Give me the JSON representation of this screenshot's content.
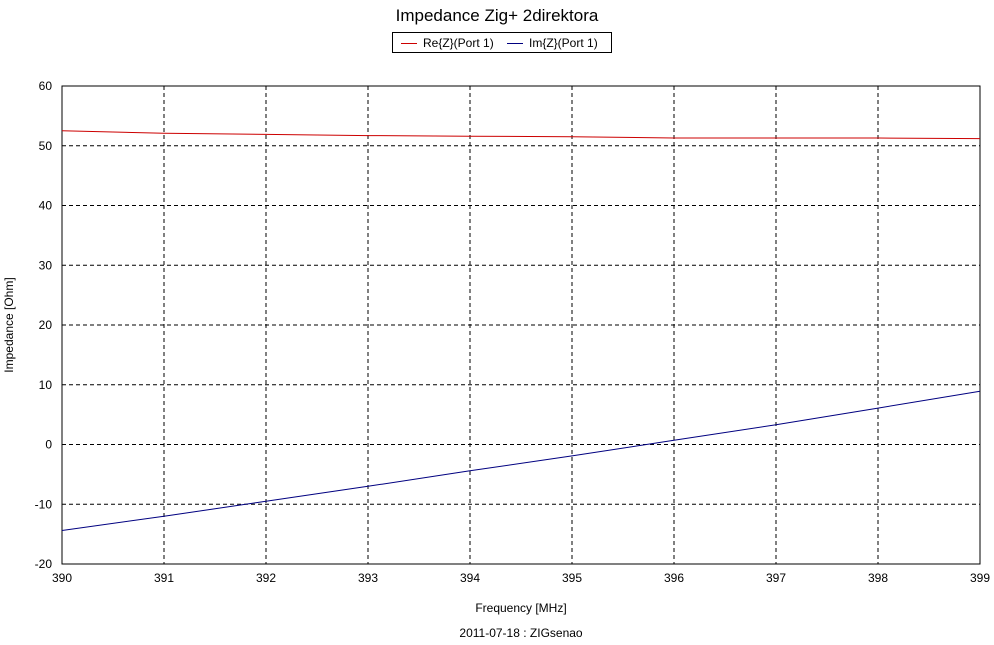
{
  "chart_data": {
    "type": "line",
    "title": "Impedance Zig+ 2direktora",
    "xlabel": "Frequency [MHz]",
    "ylabel": "Impedance [Ohm]",
    "footer": "2011-07-18 : ZIGsenao",
    "xlim": [
      390,
      399
    ],
    "ylim": [
      -20,
      60
    ],
    "x_ticks": [
      "390",
      "391",
      "392",
      "393",
      "394",
      "395",
      "396",
      "397",
      "398",
      "399"
    ],
    "y_ticks": [
      "-20",
      "-10",
      "0",
      "10",
      "20",
      "30",
      "40",
      "50",
      "60"
    ],
    "grid": true,
    "legend_position": "top-center",
    "x": [
      390,
      391,
      392,
      393,
      394,
      395,
      396,
      397,
      398,
      399
    ],
    "series": [
      {
        "name": "Re{Z}(Port 1)",
        "color": "#cc0000",
        "values": [
          52.5,
          52.1,
          51.9,
          51.7,
          51.6,
          51.5,
          51.3,
          51.3,
          51.3,
          51.2
        ]
      },
      {
        "name": "Im{Z}(Port 1)",
        "color": "#000080",
        "values": [
          -14.4,
          -12.0,
          -9.5,
          -7.0,
          -4.4,
          -1.9,
          0.7,
          3.3,
          6.1,
          8.9
        ]
      }
    ]
  }
}
